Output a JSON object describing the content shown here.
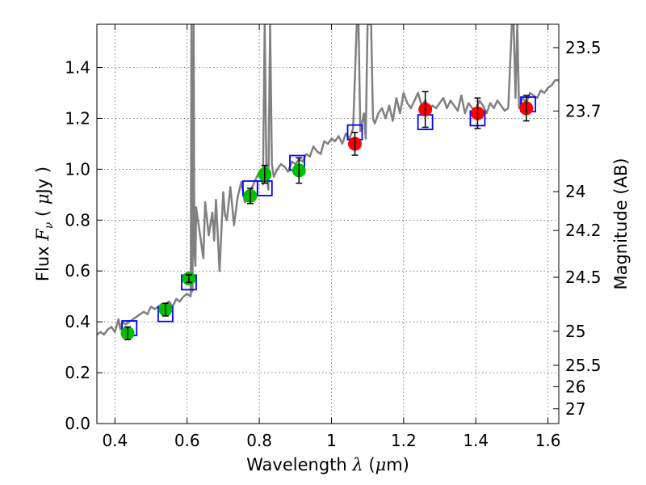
{
  "chart_data": {
    "type": "scatter",
    "title": "",
    "xlabel": "Wavelength  λ (μm)",
    "ylabel": "Flux  F_ν  ( μJy )",
    "y2label": "Magnitude (AB)",
    "xlim": [
      0.35,
      1.63
    ],
    "ylim": [
      0.0,
      1.57
    ],
    "grid": true,
    "x_ticks": [
      {
        "value": 0.4,
        "label": "0.4"
      },
      {
        "value": 0.6,
        "label": "0.6"
      },
      {
        "value": 0.8,
        "label": "0.8"
      },
      {
        "value": 1.0,
        "label": "1"
      },
      {
        "value": 1.2,
        "label": "1.2"
      },
      {
        "value": 1.4,
        "label": "1.4"
      },
      {
        "value": 1.6,
        "label": "1.6"
      }
    ],
    "y_ticks": [
      {
        "value": 0.0,
        "label": "0.0"
      },
      {
        "value": 0.2,
        "label": "0.2"
      },
      {
        "value": 0.4,
        "label": "0.4"
      },
      {
        "value": 0.6,
        "label": "0.6"
      },
      {
        "value": 0.8,
        "label": "0.8"
      },
      {
        "value": 1.0,
        "label": "1.0"
      },
      {
        "value": 1.2,
        "label": "1.2"
      },
      {
        "value": 1.4,
        "label": "1.4"
      }
    ],
    "y2_ticks": [
      {
        "flux": 1.478,
        "label": "23.5"
      },
      {
        "flux": 1.229,
        "label": "23.7"
      },
      {
        "flux": 0.912,
        "label": "24"
      },
      {
        "flux": 0.759,
        "label": "24.2"
      },
      {
        "flux": 0.575,
        "label": "24.5"
      },
      {
        "flux": 0.363,
        "label": "25"
      },
      {
        "flux": 0.229,
        "label": "25.5"
      },
      {
        "flux": 0.145,
        "label": "26"
      },
      {
        "flux": 0.058,
        "label": "27"
      }
    ],
    "series": [
      {
        "name": "model_spectrum",
        "kind": "line",
        "color": "#808080",
        "x": [
          0.35,
          0.36,
          0.37,
          0.38,
          0.39,
          0.4,
          0.41,
          0.415,
          0.42,
          0.43,
          0.44,
          0.45,
          0.46,
          0.47,
          0.48,
          0.49,
          0.5,
          0.51,
          0.52,
          0.53,
          0.54,
          0.55,
          0.56,
          0.57,
          0.58,
          0.59,
          0.6,
          0.61,
          0.612,
          0.615,
          0.618,
          0.62,
          0.623,
          0.625,
          0.63,
          0.64,
          0.645,
          0.65,
          0.66,
          0.67,
          0.675,
          0.68,
          0.69,
          0.7,
          0.705,
          0.71,
          0.72,
          0.73,
          0.74,
          0.75,
          0.76,
          0.77,
          0.78,
          0.79,
          0.8,
          0.81,
          0.815,
          0.82,
          0.825,
          0.83,
          0.835,
          0.84,
          0.85,
          0.86,
          0.87,
          0.88,
          0.89,
          0.9,
          0.91,
          0.92,
          0.93,
          0.94,
          0.95,
          0.96,
          0.97,
          0.98,
          0.99,
          1.0,
          1.01,
          1.02,
          1.03,
          1.04,
          1.05,
          1.06,
          1.07,
          1.075,
          1.08,
          1.09,
          1.095,
          1.1,
          1.11,
          1.115,
          1.12,
          1.13,
          1.14,
          1.15,
          1.16,
          1.17,
          1.18,
          1.19,
          1.2,
          1.21,
          1.22,
          1.23,
          1.24,
          1.25,
          1.26,
          1.27,
          1.28,
          1.29,
          1.3,
          1.31,
          1.32,
          1.33,
          1.34,
          1.35,
          1.36,
          1.37,
          1.38,
          1.39,
          1.4,
          1.41,
          1.42,
          1.43,
          1.44,
          1.45,
          1.46,
          1.47,
          1.48,
          1.49,
          1.5,
          1.505,
          1.51,
          1.515,
          1.52,
          1.53,
          1.54,
          1.55,
          1.56,
          1.57,
          1.58,
          1.59,
          1.6,
          1.61,
          1.62,
          1.63
        ],
        "y": [
          0.35,
          0.36,
          0.35,
          0.37,
          0.38,
          0.36,
          0.41,
          0.37,
          0.4,
          0.39,
          0.4,
          0.41,
          0.42,
          0.43,
          0.44,
          0.43,
          0.46,
          0.45,
          0.46,
          0.47,
          0.47,
          0.48,
          0.46,
          0.49,
          0.48,
          0.5,
          0.51,
          0.5,
          1.57,
          0.52,
          1.57,
          0.68,
          0.62,
          0.85,
          0.8,
          0.7,
          0.65,
          0.87,
          0.74,
          0.83,
          0.72,
          0.88,
          0.6,
          0.91,
          0.82,
          0.8,
          0.93,
          0.78,
          0.89,
          0.95,
          0.87,
          0.9,
          0.93,
          0.96,
          0.99,
          0.94,
          1.57,
          0.98,
          0.92,
          1.57,
          1.02,
          0.97,
          1.0,
          1.02,
          1.01,
          0.99,
          1.03,
          1.02,
          1.04,
          1.03,
          1.06,
          1.05,
          1.09,
          1.07,
          1.06,
          1.11,
          1.1,
          1.12,
          1.11,
          1.13,
          1.1,
          1.14,
          1.12,
          1.16,
          1.57,
          1.57,
          1.15,
          1.22,
          1.12,
          1.57,
          1.57,
          1.2,
          1.18,
          1.22,
          1.24,
          1.2,
          1.25,
          1.19,
          1.28,
          1.22,
          1.3,
          1.26,
          1.24,
          1.27,
          1.3,
          1.25,
          1.27,
          1.23,
          1.25,
          1.24,
          1.26,
          1.28,
          1.24,
          1.27,
          1.25,
          1.23,
          1.29,
          1.22,
          1.26,
          1.24,
          1.23,
          1.27,
          1.25,
          1.22,
          1.26,
          1.24,
          1.27,
          1.25,
          1.23,
          1.24,
          1.57,
          1.57,
          1.28,
          1.57,
          1.24,
          1.28,
          1.26,
          1.3,
          1.29,
          1.28,
          1.31,
          1.3,
          1.32,
          1.33,
          1.35,
          1.35
        ]
      },
      {
        "name": "model_photometry",
        "kind": "square",
        "color": "#0000ff",
        "x": [
          0.44,
          0.54,
          0.605,
          0.775,
          0.815,
          0.905,
          1.065,
          1.26,
          1.405,
          1.545
        ],
        "y": [
          0.375,
          0.43,
          0.555,
          0.925,
          0.925,
          1.025,
          1.145,
          1.185,
          1.2,
          1.255
        ]
      },
      {
        "name": "photometry_optical",
        "kind": "point",
        "color": "#00bf00",
        "x": [
          0.435,
          0.54,
          0.605,
          0.775,
          0.815,
          0.91
        ],
        "y": [
          0.355,
          0.448,
          0.57,
          0.895,
          0.98,
          0.995
        ],
        "yerr": [
          0.025,
          0.025,
          0.015,
          0.03,
          0.035,
          0.05
        ]
      },
      {
        "name": "photometry_nir",
        "kind": "point",
        "color": "#ff0000",
        "x": [
          1.065,
          1.26,
          1.405,
          1.54
        ],
        "y": [
          1.1,
          1.235,
          1.22,
          1.24
        ],
        "yerr": [
          0.045,
          0.07,
          0.06,
          0.05
        ]
      }
    ]
  }
}
